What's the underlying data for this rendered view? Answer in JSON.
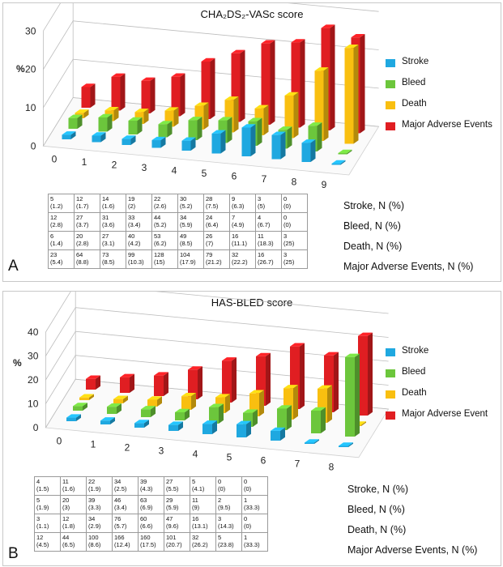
{
  "colors": {
    "stroke": "#1FA8E0",
    "bleed": "#6CC63C",
    "death": "#F9BF10",
    "mae": "#E01E22"
  },
  "charts": [
    {
      "id": "A",
      "title": "CHA₂DS₂-VASc score",
      "panel_label": "A",
      "ylabel": "%",
      "chart_data": {
        "type": "bar",
        "subtype": "3d-grouped",
        "title": "CHA₂DS₂-VASc score",
        "ylabel": "%",
        "ylim": [
          0,
          30
        ],
        "yticks": [
          "0",
          "10",
          "20",
          "30"
        ],
        "categories": [
          "0",
          "1",
          "2",
          "3",
          "4",
          "5",
          "6",
          "7",
          "8",
          "9"
        ],
        "series": [
          {
            "name": "Stroke",
            "color": "#1FA8E0",
            "values": [
              1.2,
              1.7,
              1.6,
              2,
              2.6,
              5.2,
              7.5,
              6.3,
              5,
              0
            ]
          },
          {
            "name": "Bleed",
            "color": "#6CC63C",
            "values": [
              2.8,
              3.7,
              3.6,
              3.4,
              5.2,
              5.9,
              6.4,
              4.9,
              6.7,
              0
            ]
          },
          {
            "name": "Death",
            "color": "#F9BF10",
            "values": [
              1.4,
              2.8,
              3.1,
              4.2,
              6.2,
              8.5,
              7,
              11.1,
              18.3,
              25
            ]
          },
          {
            "name": "Major Adverse Events",
            "color": "#E01E22",
            "values": [
              5.4,
              8.8,
              8.5,
              10.3,
              15,
              17.9,
              21.2,
              22.2,
              26.7,
              25
            ]
          }
        ],
        "legend": "right"
      },
      "table": [
        {
          "label": "Stroke, N (%)",
          "cells": [
            [
              "5",
              "(1.2)"
            ],
            [
              "12",
              "(1.7)"
            ],
            [
              "14",
              "(1.6)"
            ],
            [
              "19",
              "(2)"
            ],
            [
              "22",
              "(2.6)"
            ],
            [
              "30",
              "(5.2)"
            ],
            [
              "28",
              "(7.5)"
            ],
            [
              "9",
              "(6.3)"
            ],
            [
              "3",
              "(5)"
            ],
            [
              "0",
              "(0)"
            ]
          ]
        },
        {
          "label": "Bleed, N (%)",
          "cells": [
            [
              "12",
              "(2.8)"
            ],
            [
              "27",
              "(3.7)"
            ],
            [
              "31",
              "(3.6)"
            ],
            [
              "33",
              "(3.4)"
            ],
            [
              "44",
              "(5.2)"
            ],
            [
              "34",
              "(5.9)"
            ],
            [
              "24",
              "(6.4)"
            ],
            [
              "7",
              "(4.9)"
            ],
            [
              "4",
              "(6.7)"
            ],
            [
              "0",
              "(0)"
            ]
          ]
        },
        {
          "label": "Death, N (%)",
          "cells": [
            [
              "6",
              "(1.4)"
            ],
            [
              "20",
              "(2.8)"
            ],
            [
              "27",
              "(3.1)"
            ],
            [
              "40",
              "(4.2)"
            ],
            [
              "53",
              "(6.2)"
            ],
            [
              "49",
              "(8.5)"
            ],
            [
              "26",
              "(7)"
            ],
            [
              "16",
              "(11.1)"
            ],
            [
              "11",
              "(18.3)"
            ],
            [
              "3",
              "(25)"
            ]
          ]
        },
        {
          "label": "Major Adverse Events, N (%)",
          "cells": [
            [
              "23",
              "(5.4)"
            ],
            [
              "64",
              "(8.8)"
            ],
            [
              "73",
              "(8.5)"
            ],
            [
              "99",
              "(10.3)"
            ],
            [
              "128",
              "(15)"
            ],
            [
              "104",
              "(17.9)"
            ],
            [
              "79",
              "(21.2)"
            ],
            [
              "32",
              "(22.2)"
            ],
            [
              "16",
              "(26.7)"
            ],
            [
              "3",
              "(25)"
            ]
          ]
        }
      ]
    },
    {
      "id": "B",
      "title": "HAS-BLED score",
      "panel_label": "B",
      "ylabel": "%",
      "chart_data": {
        "type": "bar",
        "subtype": "3d-grouped",
        "title": "HAS-BLED score",
        "ylabel": "%",
        "ylim": [
          0,
          40
        ],
        "yticks": [
          "0",
          "10",
          "20",
          "30",
          "40"
        ],
        "categories": [
          "0",
          "1",
          "2",
          "3",
          "4",
          "5",
          "6",
          "7",
          "8"
        ],
        "series": [
          {
            "name": "Stroke",
            "color": "#1FA8E0",
            "values": [
              1.5,
              1.6,
              1.9,
              2.5,
              4.3,
              5.5,
              4.1,
              0,
              0
            ]
          },
          {
            "name": "Bleed",
            "color": "#6CC63C",
            "values": [
              1.9,
              3,
              3.3,
              3.4,
              6.9,
              5.9,
              9,
              9.5,
              33.3
            ]
          },
          {
            "name": "Death",
            "color": "#F9BF10",
            "values": [
              1.1,
              1.8,
              2.9,
              5.7,
              6.6,
              9.6,
              13.1,
              14.3,
              0
            ]
          },
          {
            "name": "Major Adverse Event",
            "color": "#E01E22",
            "values": [
              4.5,
              6.5,
              8.6,
              12.4,
              17.5,
              20.7,
              26.2,
              23.8,
              33.3
            ]
          }
        ],
        "legend": "right"
      },
      "table": [
        {
          "label": "Stroke, N (%)",
          "cells": [
            [
              "4",
              "(1.5)"
            ],
            [
              "11",
              "(1.6)"
            ],
            [
              "22",
              "(1.9)"
            ],
            [
              "34",
              "(2.5)"
            ],
            [
              "39",
              "(4.3)"
            ],
            [
              "27",
              "(5.5)"
            ],
            [
              "5",
              "(4.1)"
            ],
            [
              "0",
              "(0)"
            ],
            [
              "0",
              "(0)"
            ]
          ]
        },
        {
          "label": "Bleed, N (%)",
          "cells": [
            [
              "5",
              "(1.9)"
            ],
            [
              "20",
              "(3)"
            ],
            [
              "39",
              "(3.3)"
            ],
            [
              "46",
              "(3.4)"
            ],
            [
              "63",
              "(6.9)"
            ],
            [
              "29",
              "(5.9)"
            ],
            [
              "11",
              "(9)"
            ],
            [
              "2",
              "(9.5)"
            ],
            [
              "1",
              "(33.3)"
            ]
          ]
        },
        {
          "label": "Death, N (%)",
          "cells": [
            [
              "3",
              "(1.1)"
            ],
            [
              "12",
              "(1.8)"
            ],
            [
              "34",
              "(2.9)"
            ],
            [
              "76",
              "(5.7)"
            ],
            [
              "60",
              "(6.6)"
            ],
            [
              "47",
              "(9.6)"
            ],
            [
              "16",
              "(13.1)"
            ],
            [
              "3",
              "(14.3)"
            ],
            [
              "0",
              "(0)"
            ]
          ]
        },
        {
          "label": "Major Adverse Events, N (%)",
          "cells": [
            [
              "12",
              "(4.5)"
            ],
            [
              "44",
              "(6.5)"
            ],
            [
              "100",
              "(8.6)"
            ],
            [
              "166",
              "(12.4)"
            ],
            [
              "160",
              "(17.5)"
            ],
            [
              "101",
              "(20.7)"
            ],
            [
              "32",
              "(26.2)"
            ],
            [
              "5",
              "(23.8)"
            ],
            [
              "1",
              "(33.3)"
            ]
          ]
        }
      ]
    }
  ]
}
